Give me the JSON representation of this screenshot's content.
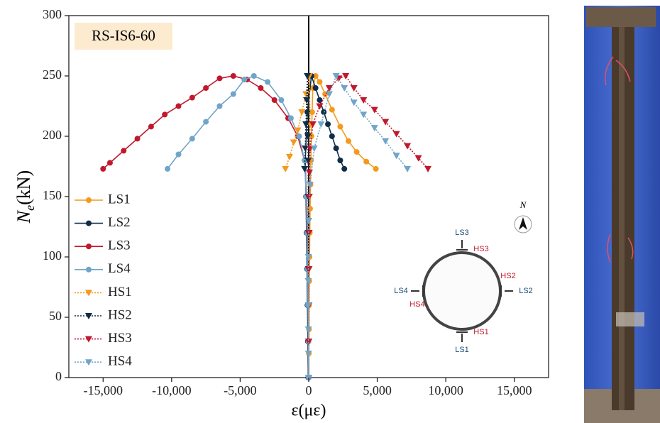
{
  "chart_data": {
    "type": "line",
    "title": "RS-IS6-60",
    "xlabel": "ε(με)",
    "ylabel": [
      "N",
      "e",
      "(kN)"
    ],
    "xlim": [
      -17500,
      17500
    ],
    "ylim": [
      0,
      300
    ],
    "xticks": [
      {
        "value": -15000,
        "label": "-15,000"
      },
      {
        "value": -10000,
        "label": "-10,000"
      },
      {
        "value": -5000,
        "label": "-5,000"
      },
      0,
      {
        "value": 5000,
        "label": "5,000"
      },
      {
        "value": 10000,
        "label": "10,000"
      },
      {
        "value": 15000,
        "label": "15,000"
      }
    ],
    "yticks": [
      0,
      50,
      100,
      150,
      200,
      250,
      300
    ],
    "series": [
      {
        "name": "LS1",
        "color": "#f39a1e",
        "marker": "circle",
        "linestyle": "solid",
        "x": [
          0,
          10,
          20,
          30,
          40,
          60,
          80,
          100,
          130,
          160,
          200,
          250,
          300,
          500,
          800,
          1200,
          1700,
          2300,
          2900,
          3500,
          4200,
          4900
        ],
        "values": [
          0,
          20,
          40,
          60,
          80,
          100,
          120,
          140,
          160,
          180,
          200,
          220,
          240,
          250,
          245,
          235,
          222,
          208,
          196,
          187,
          179,
          173
        ]
      },
      {
        "name": "LS2",
        "color": "#0f2d47",
        "marker": "circle",
        "linestyle": "solid",
        "x": [
          -30,
          -60,
          -90,
          -120,
          -160,
          -200,
          -250,
          -100,
          200,
          500,
          800,
          1100,
          1400,
          1700,
          2000,
          2300,
          2600
        ],
        "values": [
          0,
          30,
          60,
          90,
          120,
          150,
          180,
          220,
          250,
          240,
          230,
          220,
          210,
          200,
          190,
          180,
          173
        ]
      },
      {
        "name": "LS3",
        "color": "#c0182d",
        "marker": "circle",
        "linestyle": "solid",
        "x": [
          0,
          -20,
          -40,
          -70,
          -100,
          -150,
          -300,
          -800,
          -1500,
          -2500,
          -3500,
          -4500,
          -5500,
          -6500,
          -7500,
          -8500,
          -9500,
          -10500,
          -11500,
          -12500,
          -13500,
          -14500,
          -15000
        ],
        "values": [
          0,
          30,
          60,
          90,
          120,
          150,
          180,
          200,
          215,
          230,
          240,
          247,
          250,
          248,
          240,
          232,
          225,
          218,
          208,
          198,
          188,
          178,
          173
        ]
      },
      {
        "name": "LS4",
        "color": "#6fa5c8",
        "marker": "circle",
        "linestyle": "solid",
        "x": [
          0,
          -20,
          -50,
          -80,
          -120,
          -180,
          -300,
          -700,
          -1300,
          -2000,
          -3000,
          -4000,
          -4700,
          -5500,
          -6500,
          -7500,
          -8500,
          -9500,
          -10300
        ],
        "values": [
          0,
          30,
          60,
          90,
          120,
          150,
          180,
          200,
          215,
          230,
          245,
          250,
          247,
          235,
          225,
          212,
          198,
          185,
          173
        ]
      },
      {
        "name": "HS1",
        "color": "#f39a1e",
        "marker": "triangle",
        "linestyle": "dotted",
        "x": [
          0,
          10,
          20,
          30,
          40,
          50,
          70,
          100,
          50,
          -200,
          -500,
          -800,
          -1100,
          -1400,
          -1700
        ],
        "values": [
          0,
          30,
          60,
          90,
          120,
          150,
          180,
          210,
          250,
          235,
          220,
          205,
          195,
          183,
          173
        ]
      },
      {
        "name": "HS2",
        "color": "#0f2d47",
        "marker": "triangle",
        "linestyle": "dotted",
        "x": [
          0,
          -5,
          -10,
          -15,
          -20,
          -30,
          -40,
          -60,
          -100,
          -150,
          -200,
          -250,
          -300
        ],
        "values": [
          0,
          30,
          60,
          90,
          120,
          150,
          180,
          200,
          250,
          230,
          210,
          190,
          173
        ]
      },
      {
        "name": "HS3",
        "color": "#c0182d",
        "marker": "triangle",
        "linestyle": "dotted",
        "x": [
          0,
          5,
          10,
          15,
          20,
          30,
          50,
          100,
          300,
          800,
          1500,
          2200,
          2700,
          3300,
          4000,
          4800,
          5600,
          6400,
          7200,
          8000,
          8700
        ],
        "values": [
          0,
          30,
          60,
          90,
          120,
          150,
          170,
          190,
          210,
          225,
          240,
          248,
          250,
          240,
          230,
          222,
          212,
          202,
          192,
          182,
          173
        ]
      },
      {
        "name": "HS4",
        "color": "#6fa5c8",
        "marker": "triangle",
        "linestyle": "dotted",
        "x": [
          -10,
          -15,
          -20,
          -25,
          -30,
          -20,
          0,
          100,
          400,
          900,
          1500,
          2000,
          2600,
          3300,
          4000,
          4800,
          5600,
          6400,
          7200
        ],
        "values": [
          0,
          20,
          40,
          60,
          80,
          100,
          130,
          160,
          190,
          210,
          235,
          250,
          240,
          228,
          218,
          207,
          196,
          184,
          173
        ]
      }
    ],
    "legend": "left",
    "inset_labels": [
      "LS3",
      "HS3",
      "HS2",
      "LS2",
      "LS4",
      "HS4",
      "HS1",
      "LS1"
    ],
    "north": "N"
  }
}
